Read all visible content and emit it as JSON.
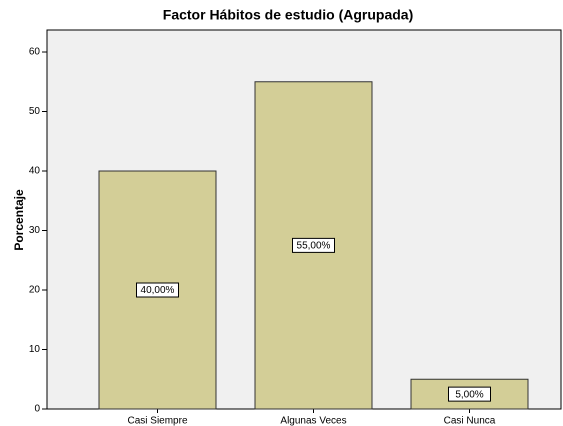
{
  "chart_data": {
    "type": "bar",
    "title": "Factor Hábitos de estudio (Agrupada)",
    "y_label": "Porcentaje",
    "categories": [
      "Casi Siempre",
      "Algunas Veces",
      "Casi Nunca"
    ],
    "values": [
      40,
      55,
      5
    ],
    "value_labels": [
      "40,00%",
      "55,00%",
      "5,00%"
    ],
    "color": "#d3ce97",
    "ylim": [
      0,
      63.7
    ],
    "yticks": [
      0,
      10,
      20,
      30,
      40,
      50,
      60
    ],
    "grid": false
  }
}
